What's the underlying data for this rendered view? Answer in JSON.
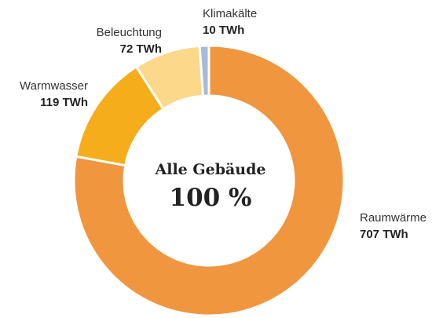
{
  "chart_data": {
    "type": "donut",
    "center_label": "Alle Gebäude",
    "center_value": "100 %",
    "categories": [
      "Raumwärme",
      "Warmwasser",
      "Beleuchtung",
      "Klimakälte"
    ],
    "values": [
      707,
      119,
      72,
      10
    ],
    "value_labels": [
      "707 TWh",
      "119 TWh",
      "72 TWh",
      "10 TWh"
    ],
    "colors": [
      "#f0963f",
      "#f5ad1b",
      "#fbd88a",
      "#a9b9dc"
    ]
  }
}
